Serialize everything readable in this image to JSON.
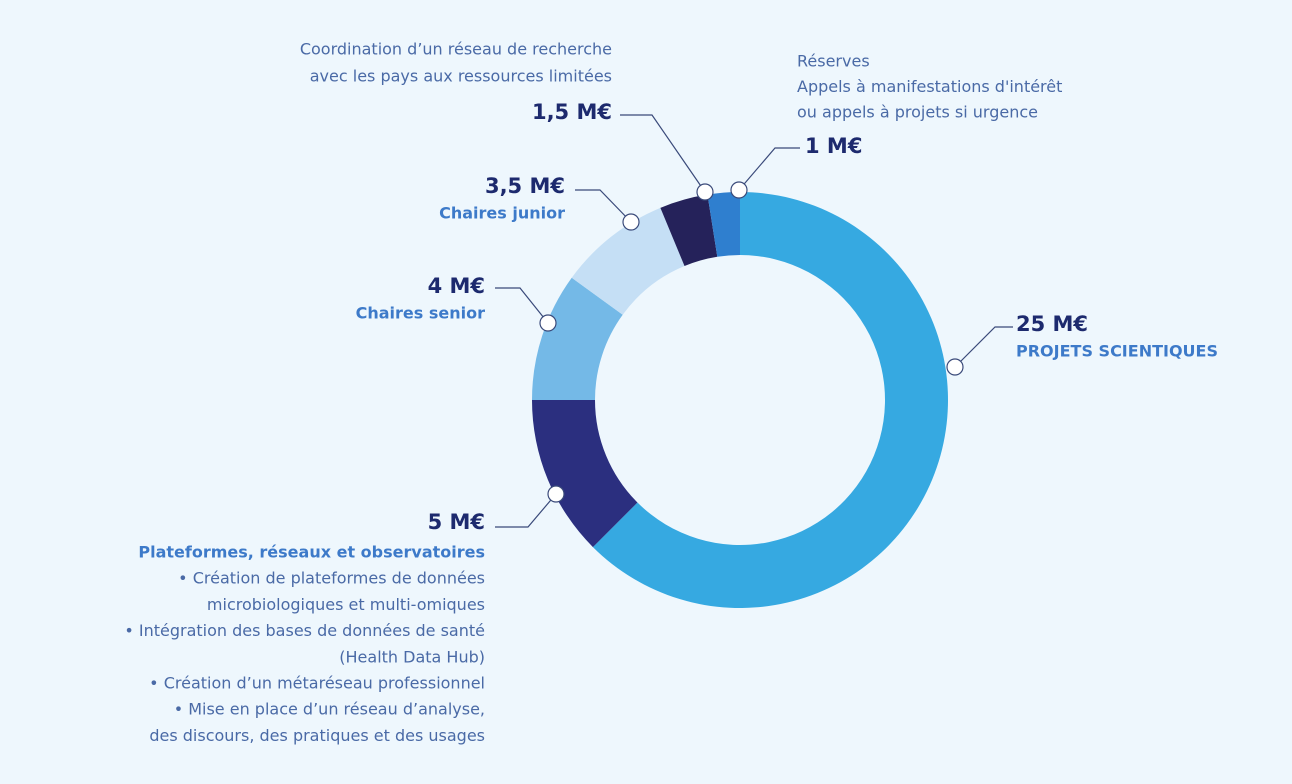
{
  "chart_data": {
    "type": "donut",
    "values": [
      25,
      5,
      4,
      3.5,
      1.5,
      1
    ],
    "value_labels": [
      "25 M€",
      "5 M€",
      "4 M€",
      "3,5 M€",
      "1,5 M€",
      "1 M€"
    ],
    "colors": [
      "#36a9e1",
      "#2b2f7f",
      "#74b9e7",
      "#c5dff5",
      "#25225a",
      "#2f7fcf"
    ],
    "descriptions": [
      [
        "PROJETS SCIENTIQUES"
      ],
      [
        "Plateformes, réseaux et observatoires",
        "• Création de plateformes de données",
        "microbiologiques et multi-omiques",
        "• Intégration des bases de données de santé",
        "(Health Data Hub)",
        "• Création d’un métaréseau professionnel",
        "• Mise en place d’un réseau d’analyse,",
        "des discours, des pratiques et des usages"
      ],
      [
        "Chaires senior"
      ],
      [
        "Chaires junior"
      ],
      [
        "Coordination d’un réseau de recherche",
        "avec les pays aux ressources limitées"
      ],
      [
        "Réserves",
        "Appels à manifestations d'intérêt",
        "ou appels à projets si urgence"
      ]
    ]
  }
}
